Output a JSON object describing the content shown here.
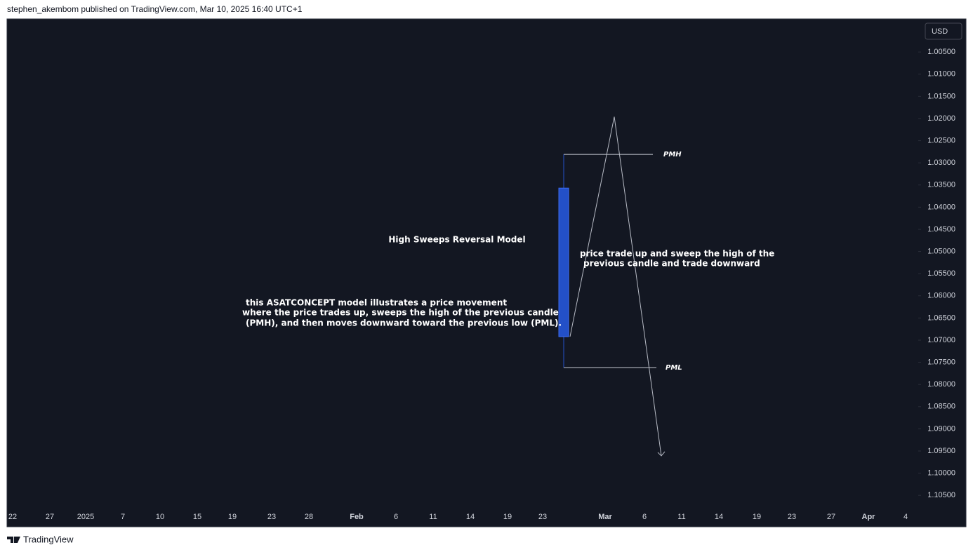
{
  "header": {
    "text": "stephen_akembom published on TradingView.com, Mar 10, 2025 16:40 UTC+1"
  },
  "footer": {
    "brand": "TradingView"
  },
  "chart_data": {
    "type": "candlestick",
    "currency": "USD",
    "ylim": [
      1.1075,
      0.9977
    ],
    "yticks": [
      {
        "value": 1.005,
        "label": "1.00500"
      },
      {
        "value": 1.01,
        "label": "1.01000"
      },
      {
        "value": 1.015,
        "label": "1.01500"
      },
      {
        "value": 1.02,
        "label": "1.02000"
      },
      {
        "value": 1.025,
        "label": "1.02500"
      },
      {
        "value": 1.03,
        "label": "1.03000"
      },
      {
        "value": 1.035,
        "label": "1.03500"
      },
      {
        "value": 1.04,
        "label": "1.04000"
      },
      {
        "value": 1.045,
        "label": "1.04500"
      },
      {
        "value": 1.05,
        "label": "1.05000"
      },
      {
        "value": 1.055,
        "label": "1.05500"
      },
      {
        "value": 1.06,
        "label": "1.06000"
      },
      {
        "value": 1.065,
        "label": "1.06500"
      },
      {
        "value": 1.07,
        "label": "1.07000"
      },
      {
        "value": 1.075,
        "label": "1.07500"
      },
      {
        "value": 1.08,
        "label": "1.08000"
      },
      {
        "value": 1.085,
        "label": "1.08500"
      },
      {
        "value": 1.09,
        "label": "1.09000"
      },
      {
        "value": 1.095,
        "label": "1.09500"
      },
      {
        "value": 1.1,
        "label": "1.10000"
      },
      {
        "value": 1.105,
        "label": "1.10500"
      }
    ],
    "x_labels": [
      "22",
      "27",
      "2025",
      "7",
      "10",
      "15",
      "19",
      "23",
      "28",
      "Feb",
      "6",
      "11",
      "14",
      "19",
      "23",
      "Mar",
      "6",
      "11",
      "14",
      "19",
      "23",
      "27",
      "Apr",
      "4"
    ],
    "candles": [
      {
        "open": 1.0692,
        "close": 1.0357,
        "wick_top": 1.0281,
        "wick_bottom": 1.0762,
        "color": "#2350c8"
      }
    ],
    "path": {
      "y": [
        1.0692,
        1.0196,
        1.0961
      ],
      "color": "#b8bcc6"
    },
    "levels": [
      {
        "label": "PMH",
        "value": 1.0281
      },
      {
        "label": "PML",
        "value": 1.0762
      }
    ],
    "annotations": {
      "title": "High Sweeps Reversal Model",
      "left": [
        "this ASATCONCEPT model illustrates a price movement",
        "where the price trades up, sweeps the high of the previous candle",
        "(PMH), and then moves downward toward the previous low (PML)."
      ],
      "right": [
        "price trade up and sweep the high of the",
        "previous candle and trade downward"
      ]
    }
  }
}
